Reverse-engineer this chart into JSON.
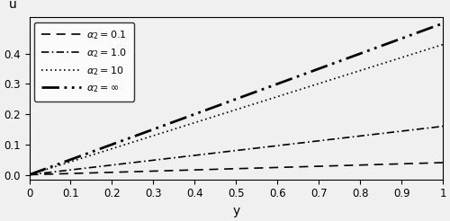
{
  "xlabel": "y",
  "ylabel": "u",
  "xlim": [
    0,
    1
  ],
  "ylim": [
    -0.015,
    0.52
  ],
  "yticks": [
    0.0,
    0.1,
    0.2,
    0.3,
    0.4
  ],
  "xticks": [
    0,
    0.1,
    0.2,
    0.3,
    0.4,
    0.5,
    0.6,
    0.7,
    0.8,
    0.9,
    1
  ],
  "xtick_labels": [
    "0",
    "0.1",
    "0.2",
    "0.3",
    "0.4",
    "0.5",
    "0.6",
    "0.7",
    "0.8",
    "0.9",
    "1"
  ],
  "background_color": "#f0f0f0",
  "figsize": [
    5.0,
    2.46
  ],
  "dpi": 100,
  "curves": [
    {
      "label": "$\\alpha_2 = 0.1$",
      "slope": 0.04,
      "power": 1.0,
      "style": "dashed",
      "lw": 1.2
    },
    {
      "label": "$\\alpha_2 = 1.0$",
      "slope": 0.16,
      "power": 1.0,
      "style": "dashdot_fine",
      "lw": 1.2
    },
    {
      "label": "$\\alpha_2 = 10$",
      "slope": 0.43,
      "power": 1.0,
      "style": "dotted",
      "lw": 1.2
    },
    {
      "label": "$\\alpha_2 = \\infty$",
      "slope": 0.5,
      "power": 1.0,
      "style": "dashdotdot",
      "lw": 2.0
    }
  ],
  "legend_loc": "upper left",
  "legend_fontsize": 8,
  "axis_fontsize": 10,
  "tick_fontsize": 8.5
}
